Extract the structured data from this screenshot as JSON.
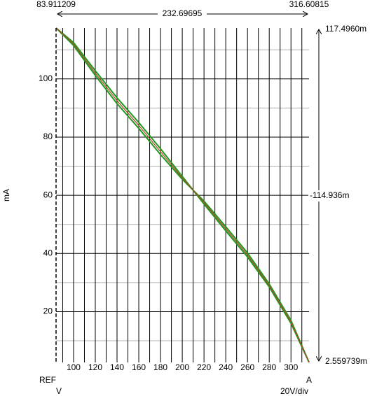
{
  "chart_data": {
    "type": "line",
    "x_axis_label": "V",
    "x_axis_unit": "20V/div",
    "y_axis_label": "mA",
    "ref_label": "REF",
    "probe_label": "A",
    "x": [
      83.911209,
      100,
      120,
      140,
      160,
      180,
      200,
      220,
      240,
      260,
      280,
      300,
      316.60815
    ],
    "series": [
      {
        "color": "#1f9a1f",
        "values": [
          117.5,
          112.5,
          102.8,
          93.5,
          85,
          76,
          66.5,
          57,
          47.8,
          38.8,
          28.5,
          16,
          2.6
        ]
      },
      {
        "color": "#1f9a1f",
        "values": [
          117.5,
          111.5,
          101.2,
          91.5,
          83,
          74,
          65.5,
          58,
          49.2,
          40.2,
          29.5,
          17,
          2.6
        ]
      },
      {
        "color": "#b5452a",
        "values": [
          117.5,
          112,
          102,
          92.5,
          84,
          75,
          66,
          57.5,
          48.5,
          39.5,
          29,
          16.5,
          2.6
        ]
      }
    ],
    "xlim": [
      83.911209,
      316.60815
    ],
    "ylim": [
      2.559739,
      117.496
    ],
    "xticks": [
      100,
      120,
      140,
      160,
      180,
      200,
      220,
      240,
      260,
      280,
      300
    ],
    "yticks": [
      20,
      40,
      60,
      80,
      100
    ],
    "x_minor_ticks": [
      90,
      110,
      130,
      150,
      170,
      190,
      210,
      230,
      250,
      270,
      290,
      310
    ],
    "y_minor_ticks": [
      10,
      30,
      50,
      70,
      90,
      110
    ],
    "grid": true,
    "cursors": {
      "x_left": "83.911209",
      "x_right": "316.60815",
      "x_delta": "232.69695",
      "y_top": "117.4960m",
      "y_delta": "-114.936m",
      "y_bottom": "2.559739m"
    }
  }
}
